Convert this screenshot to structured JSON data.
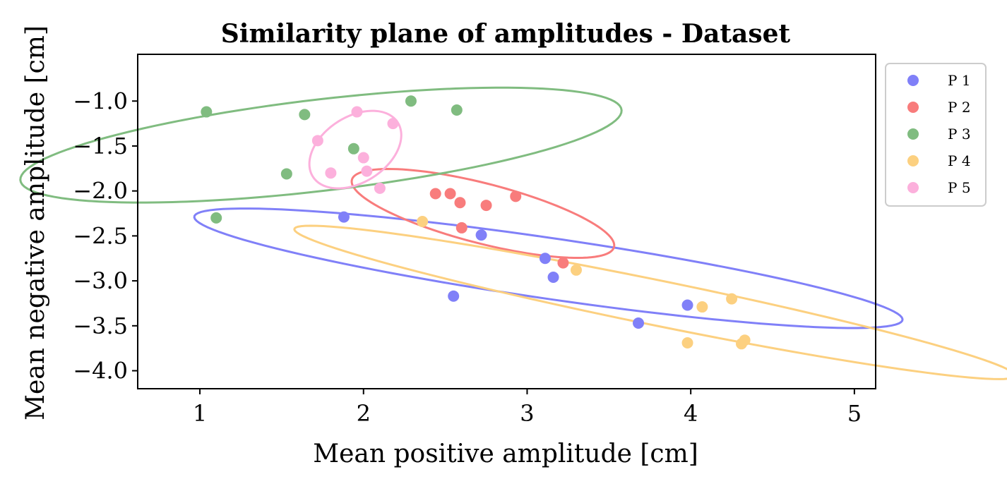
{
  "chart_data": {
    "type": "scatter",
    "title": "Similarity plane of amplitudes - Dataset",
    "xlabel": "Mean positive amplitude [cm]",
    "ylabel": "Mean negative amplitude [cm]",
    "xlim": [
      0.62,
      5.13
    ],
    "ylim": [
      -4.2,
      -0.48
    ],
    "xticks": [
      1,
      2,
      3,
      4,
      5
    ],
    "xtick_labels": [
      "1",
      "2",
      "3",
      "4",
      "5"
    ],
    "yticks": [
      -1.0,
      -1.5,
      -2.0,
      -2.5,
      -3.0,
      -3.5,
      -4.0
    ],
    "ytick_labels": [
      "−1.0",
      "−1.5",
      "−2.0",
      "−2.5",
      "−3.0",
      "−3.5",
      "−4.0"
    ],
    "grid": false,
    "legend_position": "outside-right",
    "series": [
      {
        "name": "P 1",
        "color": "#8080f8",
        "points": [
          [
            1.88,
            -2.29
          ],
          [
            2.72,
            -2.49
          ],
          [
            3.11,
            -2.75
          ],
          [
            3.16,
            -2.96
          ],
          [
            2.55,
            -3.17
          ],
          [
            3.68,
            -3.47
          ],
          [
            3.98,
            -3.27
          ]
        ],
        "ellipse": {
          "center": [
            3.13,
            -2.86
          ],
          "semi_axes": [
            2.24,
            0.33
          ],
          "angle_deg": -15.1
        }
      },
      {
        "name": "P 2",
        "color": "#f87c7c",
        "points": [
          [
            2.44,
            -2.03
          ],
          [
            2.53,
            -2.03
          ],
          [
            2.59,
            -2.13
          ],
          [
            2.75,
            -2.16
          ],
          [
            2.93,
            -2.06
          ],
          [
            2.6,
            -2.41
          ],
          [
            3.22,
            -2.8
          ]
        ],
        "ellipse": {
          "center": [
            2.73,
            -2.25
          ],
          "semi_axes": [
            0.89,
            0.31
          ],
          "angle_deg": -27.5
        }
      },
      {
        "name": "P 3",
        "color": "#80bc80",
        "points": [
          [
            1.04,
            -1.12
          ],
          [
            1.64,
            -1.15
          ],
          [
            2.29,
            -1.0
          ],
          [
            2.57,
            -1.1
          ],
          [
            1.94,
            -1.53
          ],
          [
            1.53,
            -1.81
          ],
          [
            1.1,
            -2.3
          ]
        ],
        "ellipse": {
          "center": [
            1.74,
            -1.49
          ],
          "semi_axes": [
            1.88,
            0.5
          ],
          "angle_deg": 12.7
        }
      },
      {
        "name": "P 4",
        "color": "#fcd080",
        "points": [
          [
            2.36,
            -2.34
          ],
          [
            3.3,
            -2.88
          ],
          [
            4.25,
            -3.2
          ],
          [
            4.07,
            -3.29
          ],
          [
            4.33,
            -3.66
          ],
          [
            4.31,
            -3.7
          ],
          [
            3.98,
            -3.69
          ]
        ],
        "ellipse": {
          "center": [
            3.78,
            -3.24
          ],
          "semi_axes": [
            2.35,
            0.24
          ],
          "angle_deg": -20.5
        }
      },
      {
        "name": "P 5",
        "color": "#fcb0dc",
        "points": [
          [
            1.96,
            -1.12
          ],
          [
            2.18,
            -1.25
          ],
          [
            1.72,
            -1.44
          ],
          [
            2.0,
            -1.63
          ],
          [
            1.8,
            -1.8
          ],
          [
            2.02,
            -1.78
          ],
          [
            2.1,
            -1.97
          ]
        ],
        "ellipse": {
          "center": [
            1.95,
            -1.54
          ],
          "semi_axes": [
            0.45,
            0.25
          ],
          "angle_deg": 70.0
        }
      }
    ]
  }
}
